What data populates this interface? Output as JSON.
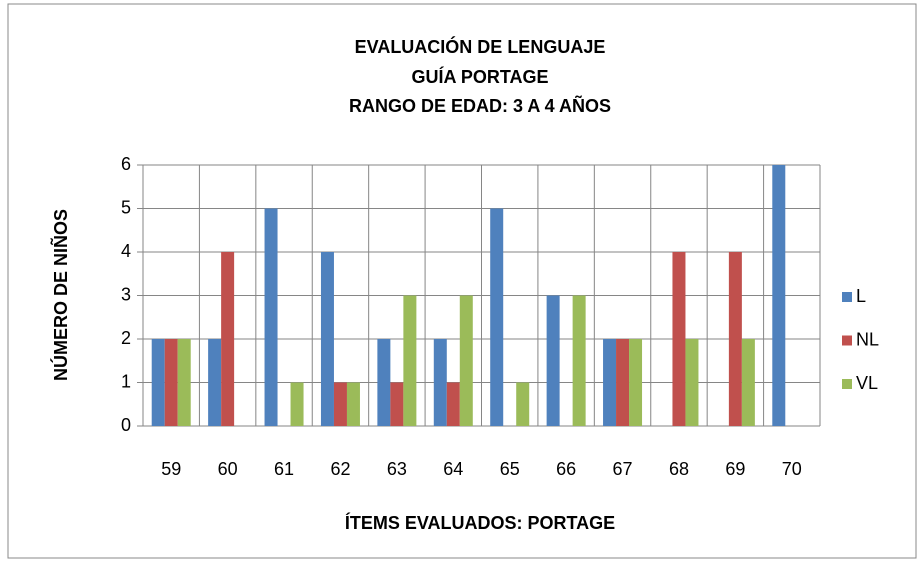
{
  "chart_data": {
    "type": "bar",
    "title": "EVALUACIÓN DE LENGUAJE",
    "subtitle": [
      "GUÍA PORTAGE",
      "RANGO DE EDAD: 3 A 4 AÑOS"
    ],
    "x_label": "ÍTEMS EVALUADOS: PORTAGE",
    "y_label": "NÚMERO DE NIÑOS",
    "categories": [
      "59",
      "60",
      "61",
      "62",
      "63",
      "64",
      "65",
      "66",
      "67",
      "68",
      "69",
      "70"
    ],
    "series": [
      {
        "name": "L",
        "color": "#4f81bd",
        "values": [
          2,
          2,
          5,
          4,
          2,
          2,
          5,
          3,
          2,
          0,
          0,
          6
        ]
      },
      {
        "name": "NL",
        "color": "#c0504d",
        "values": [
          2,
          4,
          0,
          1,
          1,
          1,
          0,
          0,
          2,
          4,
          4,
          0
        ]
      },
      {
        "name": "VL",
        "color": "#9bbb59",
        "values": [
          2,
          0,
          1,
          1,
          3,
          3,
          1,
          3,
          2,
          2,
          2,
          0
        ]
      }
    ],
    "ylim": [
      0,
      6
    ],
    "yticks": [
      0,
      1,
      2,
      3,
      4,
      5,
      6
    ],
    "grid": true,
    "legend": "right"
  }
}
